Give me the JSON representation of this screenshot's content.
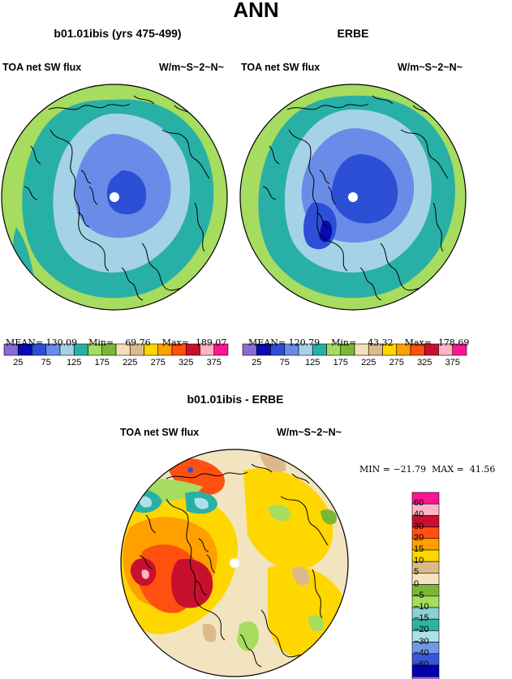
{
  "page": {
    "title": "ANN"
  },
  "colors": {
    "levels_main": [
      "#8c6bd6",
      "#0a0ab4",
      "#2c4fd6",
      "#6b8be8",
      "#a5d2e6",
      "#29b0a6",
      "#a6dc5f",
      "#7bb736",
      "#f3dfb8",
      "#ddb98a",
      "#ffd700",
      "#ff9f00",
      "#ff5010",
      "#c8102e",
      "#ffb3c6",
      "#ff1493"
    ],
    "levels_diff": [
      "#9370db",
      "#0000b0",
      "#3a57d6",
      "#6f99e6",
      "#aee0e8",
      "#2cb3a6",
      "#8cd0d0",
      "#a6dc5f",
      "#7bb736",
      "#f2e4bf",
      "#ddb98a",
      "#ffd700",
      "#ff9f00",
      "#ff5010",
      "#c8102e",
      "#ffb3c6",
      "#ff1493"
    ]
  },
  "panels": [
    {
      "title": "b01.01ibis (yrs 475-499)",
      "left_label": "TOA net SW flux",
      "right_label": "W/m~S~2~N~",
      "stats": {
        "mean_label": "MEAN=",
        "mean": "130.09",
        "min_label": "Min=",
        "min": "69.76",
        "max_label": "Max=",
        "max": "189.07"
      },
      "colorbar_labels": [
        "25",
        "75",
        "125",
        "175",
        "225",
        "275",
        "325",
        "375"
      ]
    },
    {
      "title": "ERBE",
      "left_label": "TOA net SW flux",
      "right_label": "W/m~S~2~N~",
      "stats": {
        "mean_label": "MEAN=",
        "mean": "120.79",
        "min_label": "Min=",
        "min": "43.32",
        "max_label": "Max=",
        "max": "178.69"
      },
      "colorbar_labels": [
        "25",
        "75",
        "125",
        "175",
        "225",
        "275",
        "325",
        "375"
      ]
    }
  ],
  "diff_panel": {
    "title": "b01.01ibis - ERBE",
    "left_label": "TOA net SW flux",
    "right_label": "W/m~S~2~N~",
    "stats_text": "MIN = −21.79  MAX =  41.56",
    "colorbar_labels": [
      "60",
      "40",
      "30",
      "20",
      "15",
      "10",
      "5",
      "0",
      "−5",
      "−10",
      "−15",
      "−20",
      "−30",
      "−40",
      "−60"
    ]
  },
  "chart_data": [
    {
      "type": "heatmap",
      "title": "b01.01ibis (yrs 475-499)",
      "subtitle": "TOA net SW flux",
      "units": "W/m~S~2~N~",
      "projection": "north polar stereographic",
      "contour_levels": [
        25,
        50,
        75,
        100,
        125,
        150,
        175,
        200,
        225,
        250,
        275,
        300,
        325,
        350,
        375
      ],
      "mean": 130.09,
      "min": 69.76,
      "max": 189.07
    },
    {
      "type": "heatmap",
      "title": "ERBE",
      "subtitle": "TOA net SW flux",
      "units": "W/m~S~2~N~",
      "projection": "north polar stereographic",
      "contour_levels": [
        25,
        50,
        75,
        100,
        125,
        150,
        175,
        200,
        225,
        250,
        275,
        300,
        325,
        350,
        375
      ],
      "mean": 120.79,
      "min": 43.32,
      "max": 178.69
    },
    {
      "type": "heatmap",
      "title": "b01.01ibis - ERBE",
      "subtitle": "TOA net SW flux",
      "units": "W/m~S~2~N~",
      "projection": "north polar stereographic",
      "contour_levels": [
        -60,
        -40,
        -30,
        -20,
        -15,
        -10,
        -5,
        0,
        5,
        10,
        15,
        20,
        30,
        40,
        60
      ],
      "min": -21.79,
      "max": 41.56
    }
  ]
}
